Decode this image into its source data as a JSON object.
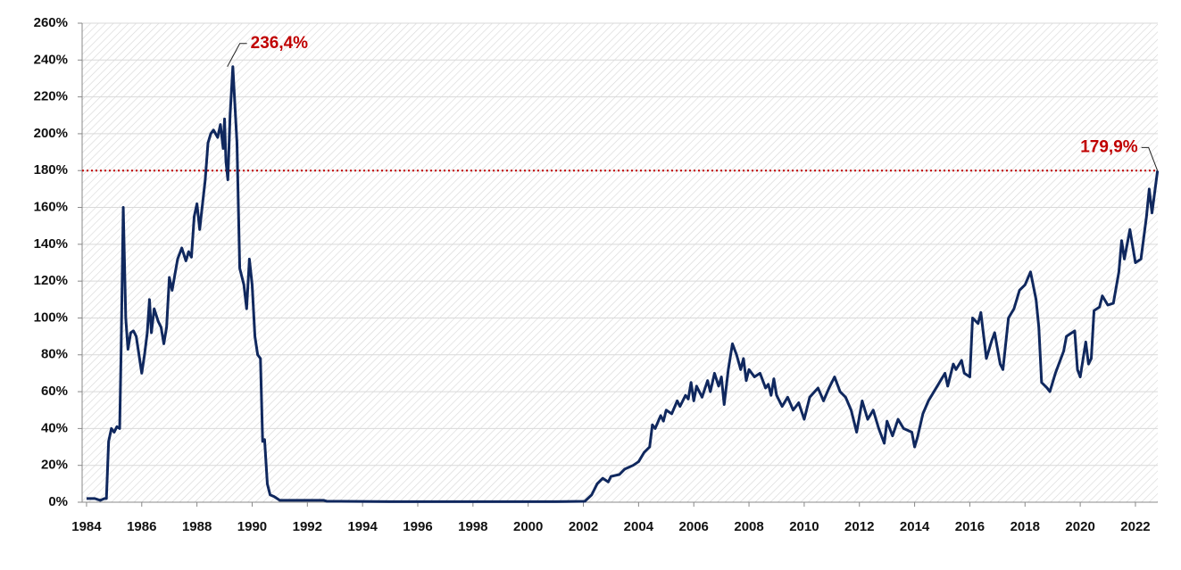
{
  "chart_data": {
    "type": "line",
    "xlim": [
      1983.84,
      2022.81
    ],
    "xticks": [
      1984,
      1986,
      1988,
      1990,
      1992,
      1994,
      1996,
      1998,
      2000,
      2002,
      2004,
      2006,
      2008,
      2010,
      2012,
      2014,
      2016,
      2018,
      2020,
      2022
    ],
    "ylim": [
      0,
      260
    ],
    "yticks": [
      {
        "value": 0,
        "label": "0%"
      },
      {
        "value": 20,
        "label": "20%"
      },
      {
        "value": 40,
        "label": "40%"
      },
      {
        "value": 60,
        "label": "60%"
      },
      {
        "value": 80,
        "label": "80%"
      },
      {
        "value": 100,
        "label": "100%"
      },
      {
        "value": 120,
        "label": "120%"
      },
      {
        "value": 140,
        "label": "140%"
      },
      {
        "value": 160,
        "label": "160%"
      },
      {
        "value": 180,
        "label": "180%"
      },
      {
        "value": 200,
        "label": "200%"
      },
      {
        "value": 220,
        "label": "220%"
      },
      {
        "value": 240,
        "label": "240%"
      },
      {
        "value": 260,
        "label": "260%"
      }
    ],
    "grid": true,
    "reference_line": {
      "value": 180,
      "color": "#c00000"
    },
    "annotations": [
      {
        "x": 1989.1,
        "y": 236.4,
        "label": "236,4%",
        "color": "#c00000"
      },
      {
        "x": 2022.8,
        "y": 179.9,
        "label": "179,9%",
        "color": "#c00000"
      }
    ],
    "series": [
      {
        "color": "#10285e",
        "x": [
          1984.0,
          1984.3,
          1984.5,
          1984.65,
          1984.72,
          1984.8,
          1984.9,
          1985.0,
          1985.1,
          1985.2,
          1985.25,
          1985.33,
          1985.42,
          1985.5,
          1985.6,
          1985.7,
          1985.8,
          1985.9,
          1986.0,
          1986.1,
          1986.2,
          1986.28,
          1986.35,
          1986.45,
          1986.6,
          1986.7,
          1986.8,
          1986.9,
          1987.0,
          1987.1,
          1987.3,
          1987.45,
          1987.6,
          1987.7,
          1987.8,
          1987.9,
          1988.0,
          1988.1,
          1988.15,
          1988.3,
          1988.4,
          1988.5,
          1988.6,
          1988.75,
          1988.85,
          1988.95,
          1989.0,
          1989.05,
          1989.12,
          1989.2,
          1989.3,
          1989.45,
          1989.55,
          1989.7,
          1989.8,
          1989.9,
          1990.0,
          1990.1,
          1990.2,
          1990.3,
          1990.38,
          1990.45,
          1990.55,
          1990.65,
          1990.8,
          1991.0,
          1991.3,
          1992.0,
          1992.6,
          1992.7,
          1995.0,
          2001.0,
          2002.05,
          2002.3,
          2002.5,
          2002.7,
          2002.9,
          2003.0,
          2003.3,
          2003.5,
          2003.8,
          2004.0,
          2004.2,
          2004.4,
          2004.5,
          2004.6,
          2004.8,
          2004.9,
          2005.0,
          2005.2,
          2005.4,
          2005.5,
          2005.7,
          2005.8,
          2005.9,
          2006.0,
          2006.1,
          2006.3,
          2006.5,
          2006.6,
          2006.75,
          2006.9,
          2007.0,
          2007.1,
          2007.25,
          2007.4,
          2007.55,
          2007.7,
          2007.8,
          2007.9,
          2008.0,
          2008.2,
          2008.4,
          2008.6,
          2008.7,
          2008.8,
          2008.9,
          2009.0,
          2009.2,
          2009.4,
          2009.6,
          2009.8,
          2010.0,
          2010.2,
          2010.5,
          2010.7,
          2010.9,
          2011.1,
          2011.3,
          2011.5,
          2011.7,
          2011.9,
          2012.1,
          2012.3,
          2012.5,
          2012.7,
          2012.9,
          2013.0,
          2013.2,
          2013.4,
          2013.6,
          2013.9,
          2014.0,
          2014.1,
          2014.3,
          2014.5,
          2014.7,
          2014.9,
          2015.1,
          2015.2,
          2015.4,
          2015.5,
          2015.7,
          2015.8,
          2016.0,
          2016.1,
          2016.3,
          2016.4,
          2016.6,
          2016.8,
          2016.9,
          2017.1,
          2017.2,
          2017.4,
          2017.6,
          2017.8,
          2018.0,
          2018.2,
          2018.4,
          2018.5,
          2018.6,
          2018.8,
          2018.9,
          2019.1,
          2019.4,
          2019.5,
          2019.8,
          2019.9,
          2020.0,
          2020.2,
          2020.3,
          2020.4,
          2020.5,
          2020.7,
          2020.8,
          2021.0,
          2021.2,
          2021.4,
          2021.5,
          2021.6,
          2021.8,
          2022.0,
          2022.2,
          2022.4,
          2022.5,
          2022.6,
          2022.8
        ],
        "values": [
          2,
          2,
          1,
          2,
          2,
          33,
          40,
          38,
          41,
          40,
          80,
          160,
          100,
          83,
          92,
          93,
          90,
          80,
          70,
          80,
          92,
          110,
          92,
          105,
          98,
          95,
          86,
          95,
          122,
          115,
          132,
          138,
          131,
          136,
          133,
          155,
          162,
          148,
          155,
          175,
          195,
          200,
          202,
          198,
          205,
          192,
          208,
          185,
          175,
          210,
          236.4,
          195,
          127,
          118,
          105,
          132,
          118,
          90,
          80,
          78,
          33,
          34,
          10,
          4,
          3,
          1,
          1,
          1,
          1,
          0.5,
          0.3,
          0.3,
          0.5,
          4,
          10,
          13,
          11,
          14,
          15,
          18,
          20,
          22,
          27,
          30,
          42,
          40,
          47,
          44,
          50,
          48,
          55,
          52,
          58,
          56,
          65,
          55,
          63,
          57,
          66,
          60,
          70,
          63,
          68,
          53,
          72,
          86,
          80,
          72,
          78,
          66,
          72,
          68,
          70,
          62,
          64,
          58,
          67,
          58,
          52,
          57,
          50,
          54,
          45,
          57,
          62,
          55,
          62,
          68,
          60,
          57,
          50,
          38,
          55,
          45,
          50,
          40,
          32,
          44,
          36,
          45,
          40,
          38,
          30,
          35,
          48,
          55,
          60,
          65,
          70,
          63,
          75,
          72,
          77,
          70,
          68,
          100,
          97,
          103,
          78,
          88,
          92,
          75,
          72,
          100,
          105,
          115,
          118,
          125,
          110,
          95,
          65,
          62,
          60,
          70,
          82,
          90,
          93,
          72,
          68,
          87,
          75,
          78,
          104,
          106,
          112,
          107,
          108,
          125,
          142,
          132,
          148,
          130,
          132,
          155,
          170,
          157,
          179.9
        ]
      }
    ]
  }
}
